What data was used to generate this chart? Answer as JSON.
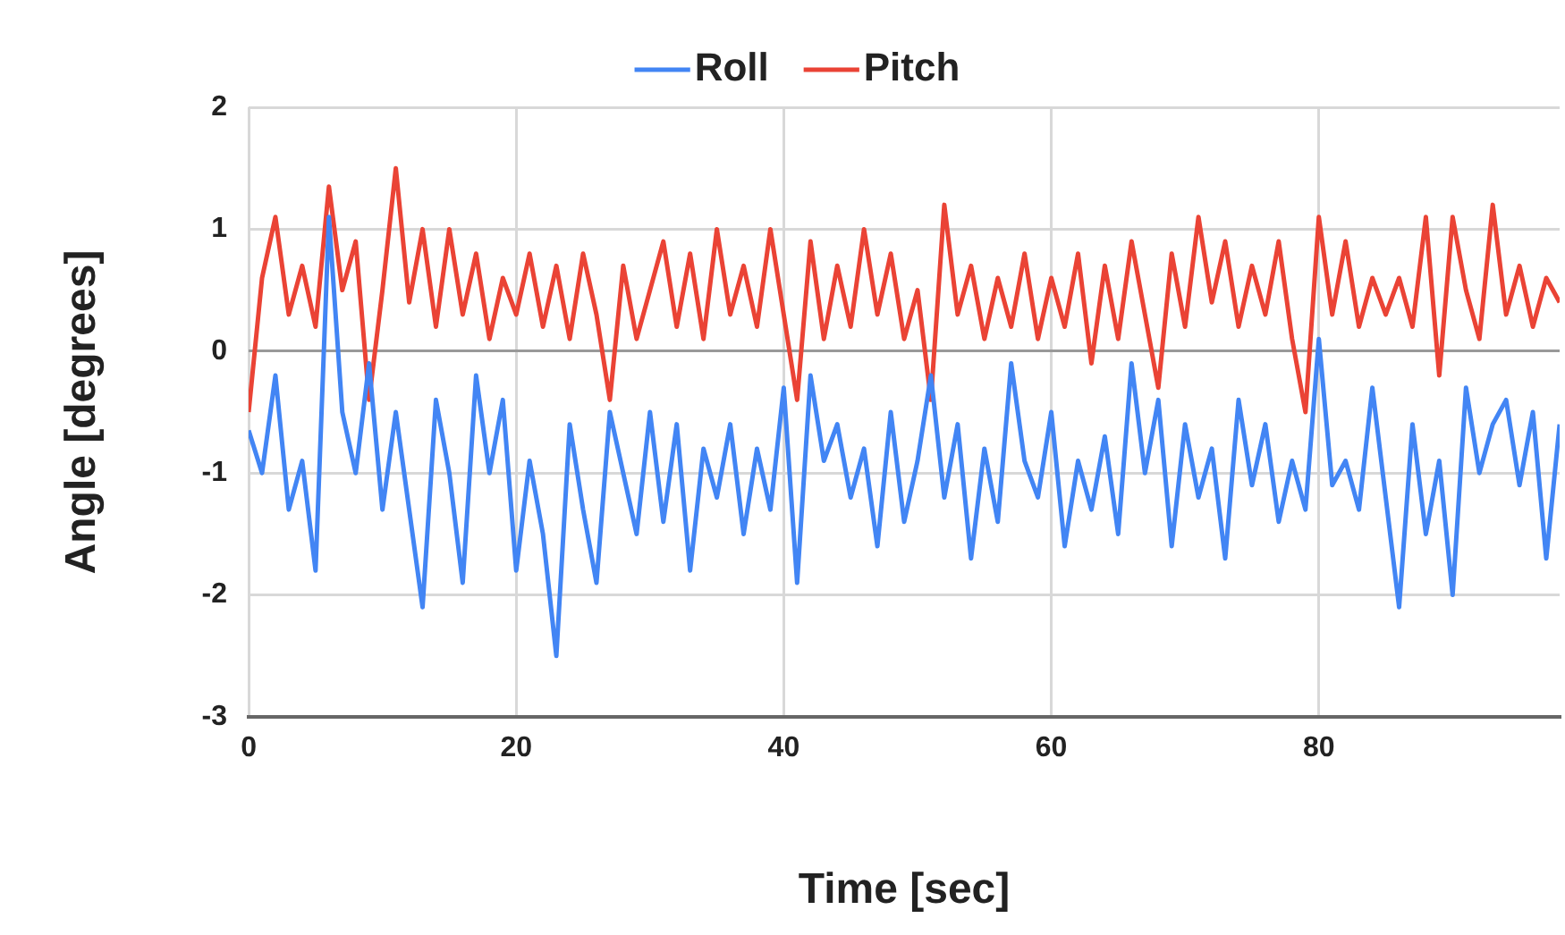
{
  "chart_data": {
    "type": "line",
    "xlabel": "Time [sec]",
    "ylabel": "Angle [degrees]",
    "x": [
      0,
      1,
      2,
      3,
      4,
      5,
      6,
      7,
      8,
      9,
      10,
      11,
      12,
      13,
      14,
      15,
      16,
      17,
      18,
      19,
      20,
      21,
      22,
      23,
      24,
      25,
      26,
      27,
      28,
      29,
      30,
      31,
      32,
      33,
      34,
      35,
      36,
      37,
      38,
      39,
      40,
      41,
      42,
      43,
      44,
      45,
      46,
      47,
      48,
      49,
      50,
      51,
      52,
      53,
      54,
      55,
      56,
      57,
      58,
      59,
      60,
      61,
      62,
      63,
      64,
      65,
      66,
      67,
      68,
      69,
      70,
      71,
      72,
      73,
      74,
      75,
      76,
      77,
      78,
      79,
      80,
      81,
      82,
      83,
      84,
      85,
      86,
      87,
      88,
      89,
      90,
      91,
      92,
      93,
      94,
      95,
      96,
      97,
      98
    ],
    "series": [
      {
        "name": "Roll",
        "color": "#4285f4",
        "values": [
          -0.65,
          -1.0,
          -0.2,
          -1.3,
          -0.9,
          -1.8,
          1.1,
          -0.5,
          -1.0,
          -0.1,
          -1.3,
          -0.5,
          -1.3,
          -2.1,
          -0.4,
          -1.0,
          -1.9,
          -0.2,
          -1.0,
          -0.4,
          -1.8,
          -0.9,
          -1.5,
          -2.5,
          -0.6,
          -1.3,
          -1.9,
          -0.5,
          -1.0,
          -1.5,
          -0.5,
          -1.4,
          -0.6,
          -1.8,
          -0.8,
          -1.2,
          -0.6,
          -1.5,
          -0.8,
          -1.3,
          -0.3,
          -1.9,
          -0.2,
          -0.9,
          -0.6,
          -1.2,
          -0.8,
          -1.6,
          -0.5,
          -1.4,
          -0.9,
          -0.2,
          -1.2,
          -0.6,
          -1.7,
          -0.8,
          -1.4,
          -0.1,
          -0.9,
          -1.2,
          -0.5,
          -1.6,
          -0.9,
          -1.3,
          -0.7,
          -1.5,
          -0.1,
          -1.0,
          -0.4,
          -1.6,
          -0.6,
          -1.2,
          -0.8,
          -1.7,
          -0.4,
          -1.1,
          -0.6,
          -1.4,
          -0.9,
          -1.3,
          0.1,
          -1.1,
          -0.9,
          -1.3,
          -0.3,
          -1.2,
          -2.1,
          -0.6,
          -1.5,
          -0.9,
          -2.0,
          -0.3,
          -1.0,
          -0.6,
          -0.4,
          -1.1,
          -0.5,
          -1.7,
          -0.6
        ]
      },
      {
        "name": "Pitch",
        "color": "#ea4335",
        "values": [
          -0.5,
          0.6,
          1.1,
          0.3,
          0.7,
          0.2,
          1.35,
          0.5,
          0.9,
          -0.4,
          0.5,
          1.5,
          0.4,
          1.0,
          0.2,
          1.0,
          0.3,
          0.8,
          0.1,
          0.6,
          0.3,
          0.8,
          0.2,
          0.7,
          0.1,
          0.8,
          0.3,
          -0.4,
          0.7,
          0.1,
          0.5,
          0.9,
          0.2,
          0.8,
          0.1,
          1.0,
          0.3,
          0.7,
          0.2,
          1.0,
          0.3,
          -0.4,
          0.9,
          0.1,
          0.7,
          0.2,
          1.0,
          0.3,
          0.8,
          0.1,
          0.5,
          -0.4,
          1.2,
          0.3,
          0.7,
          0.1,
          0.6,
          0.2,
          0.8,
          0.1,
          0.6,
          0.2,
          0.8,
          -0.1,
          0.7,
          0.1,
          0.9,
          0.3,
          -0.3,
          0.8,
          0.2,
          1.1,
          0.4,
          0.9,
          0.2,
          0.7,
          0.3,
          0.9,
          0.1,
          -0.5,
          1.1,
          0.3,
          0.9,
          0.2,
          0.6,
          0.3,
          0.6,
          0.2,
          1.1,
          -0.2,
          1.1,
          0.5,
          0.1,
          1.2,
          0.3,
          0.7,
          0.2,
          0.6,
          0.4
        ]
      }
    ],
    "xlim": [
      0,
      98
    ],
    "xticks": [
      0,
      20,
      40,
      60,
      80
    ],
    "ylim": [
      -3,
      2
    ],
    "yticks": [
      -3,
      -2,
      -1,
      0,
      1,
      2
    ],
    "grid": true,
    "legend": "top",
    "marker": "none",
    "line_style": "solid"
  }
}
